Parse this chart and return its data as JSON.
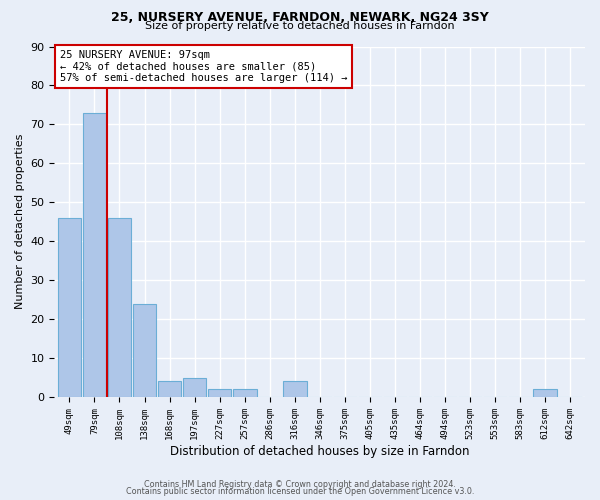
{
  "title1": "25, NURSERY AVENUE, FARNDON, NEWARK, NG24 3SY",
  "title2": "Size of property relative to detached houses in Farndon",
  "xlabel": "Distribution of detached houses by size in Farndon",
  "ylabel": "Number of detached properties",
  "categories": [
    "49sqm",
    "79sqm",
    "108sqm",
    "138sqm",
    "168sqm",
    "197sqm",
    "227sqm",
    "257sqm",
    "286sqm",
    "316sqm",
    "346sqm",
    "375sqm",
    "405sqm",
    "435sqm",
    "464sqm",
    "494sqm",
    "523sqm",
    "553sqm",
    "583sqm",
    "612sqm",
    "642sqm"
  ],
  "values": [
    46,
    73,
    46,
    24,
    4,
    5,
    2,
    2,
    0,
    4,
    0,
    0,
    0,
    0,
    0,
    0,
    0,
    0,
    0,
    2,
    0
  ],
  "bar_color": "#aec6e8",
  "bar_edge_color": "#6baed6",
  "bg_color": "#e8eef8",
  "grid_color": "#ffffff",
  "vline_x": 1.5,
  "vline_color": "#cc0000",
  "annotation_text": "25 NURSERY AVENUE: 97sqm\n← 42% of detached houses are smaller (85)\n57% of semi-detached houses are larger (114) →",
  "annotation_box_color": "#ffffff",
  "annotation_box_edge_color": "#cc0000",
  "ylim": [
    0,
    90
  ],
  "yticks": [
    0,
    10,
    20,
    30,
    40,
    50,
    60,
    70,
    80,
    90
  ],
  "footnote1": "Contains HM Land Registry data © Crown copyright and database right 2024.",
  "footnote2": "Contains public sector information licensed under the Open Government Licence v3.0."
}
